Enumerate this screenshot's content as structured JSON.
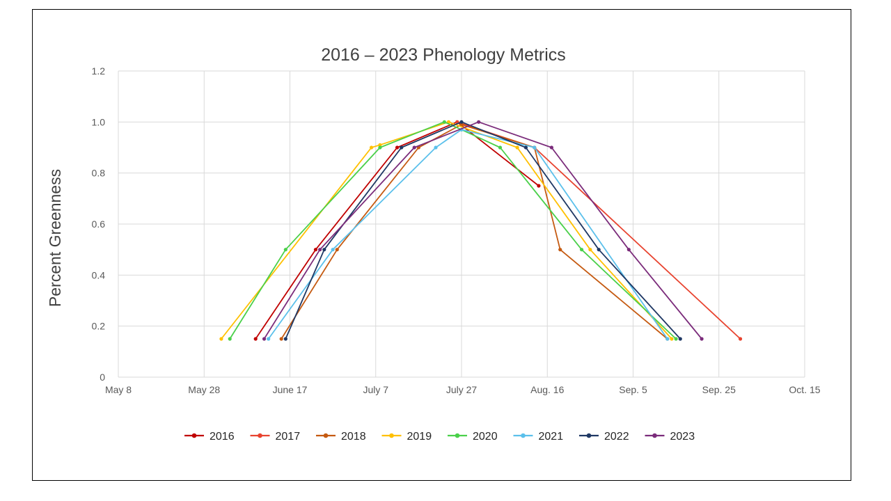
{
  "chart_data": {
    "type": "line",
    "title": "2016 – 2023 Phenology Metrics",
    "xlabel": "",
    "ylabel": "Percent Greenness",
    "ylim": [
      0,
      1.2
    ],
    "yticks": [
      0,
      0.2,
      0.4,
      0.6,
      0.8,
      1.0,
      1.2
    ],
    "ytick_labels": [
      "0",
      "0.2",
      "0.4",
      "0.6",
      "0.8",
      "1.0",
      "1.2"
    ],
    "xlim": [
      "May 8",
      "Oct. 15"
    ],
    "xtick_labels": [
      "May 8",
      "May 28",
      "June 17",
      "July 7",
      "July 27",
      "Aug. 16",
      "Sep. 5",
      "Sep. 25",
      "Oct. 15"
    ],
    "grid": true,
    "legend_position": "bottom",
    "series": [
      {
        "name": "2016",
        "color": "#C00000",
        "points": [
          [
            "Jun 9",
            0.15
          ],
          [
            "Jun 23",
            0.5
          ],
          [
            "Jul 12",
            0.9
          ],
          [
            "Jul 26",
            1.0
          ],
          [
            "Aug 14",
            0.75
          ]
        ]
      },
      {
        "name": "2017",
        "color": "#E8432F",
        "points": [
          [
            "Jul 26",
            1.0
          ],
          [
            "Aug 13",
            0.9
          ],
          [
            "Sep 30",
            0.15
          ]
        ]
      },
      {
        "name": "2018",
        "color": "#C55A11",
        "points": [
          [
            "Jun 15",
            0.15
          ],
          [
            "Jun 28",
            0.5
          ],
          [
            "Jul 17",
            0.9
          ],
          [
            "Jul 27",
            0.99
          ],
          [
            "Aug 13",
            0.9
          ],
          [
            "Aug 19",
            0.5
          ],
          [
            "Sep 13",
            0.15
          ]
        ]
      },
      {
        "name": "2019",
        "color": "#FFC000",
        "points": [
          [
            "Jun 1",
            0.15
          ],
          [
            "Jul 6",
            0.9
          ],
          [
            "Jul 8",
            0.91
          ],
          [
            "Jul 24",
            1.0
          ],
          [
            "Aug 9",
            0.9
          ],
          [
            "Aug 26",
            0.5
          ],
          [
            "Sep 14",
            0.15
          ]
        ]
      },
      {
        "name": "2020",
        "color": "#4AD04A",
        "points": [
          [
            "Jun 3",
            0.15
          ],
          [
            "Jun 16",
            0.5
          ],
          [
            "Jul 8",
            0.9
          ],
          [
            "Jul 23",
            1.0
          ],
          [
            "Jul 27",
            0.97
          ],
          [
            "Aug 5",
            0.9
          ],
          [
            "Aug 24",
            0.5
          ],
          [
            "Sep 15",
            0.15
          ]
        ]
      },
      {
        "name": "2021",
        "color": "#5BC0EB",
        "points": [
          [
            "Jun 12",
            0.15
          ],
          [
            "Jun 27",
            0.5
          ],
          [
            "Jul 21",
            0.9
          ],
          [
            "Jul 27",
            0.97
          ],
          [
            "Aug 13",
            0.9
          ],
          [
            "Sep 13",
            0.15
          ]
        ]
      },
      {
        "name": "2022",
        "color": "#1F3864",
        "points": [
          [
            "Jun 16",
            0.15
          ],
          [
            "Jun 25",
            0.5
          ],
          [
            "Jul 13",
            0.9
          ],
          [
            "Jul 27",
            1.0
          ],
          [
            "Aug 11",
            0.9
          ],
          [
            "Aug 28",
            0.5
          ],
          [
            "Sep 16",
            0.15
          ]
        ]
      },
      {
        "name": "2023",
        "color": "#7B2C7B",
        "points": [
          [
            "Jun 11",
            0.15
          ],
          [
            "Jun 24",
            0.5
          ],
          [
            "Jul 16",
            0.9
          ],
          [
            "Jul 31",
            1.0
          ],
          [
            "Aug 17",
            0.9
          ],
          [
            "Sep 4",
            0.5
          ],
          [
            "Sep 21",
            0.15
          ]
        ]
      }
    ]
  }
}
